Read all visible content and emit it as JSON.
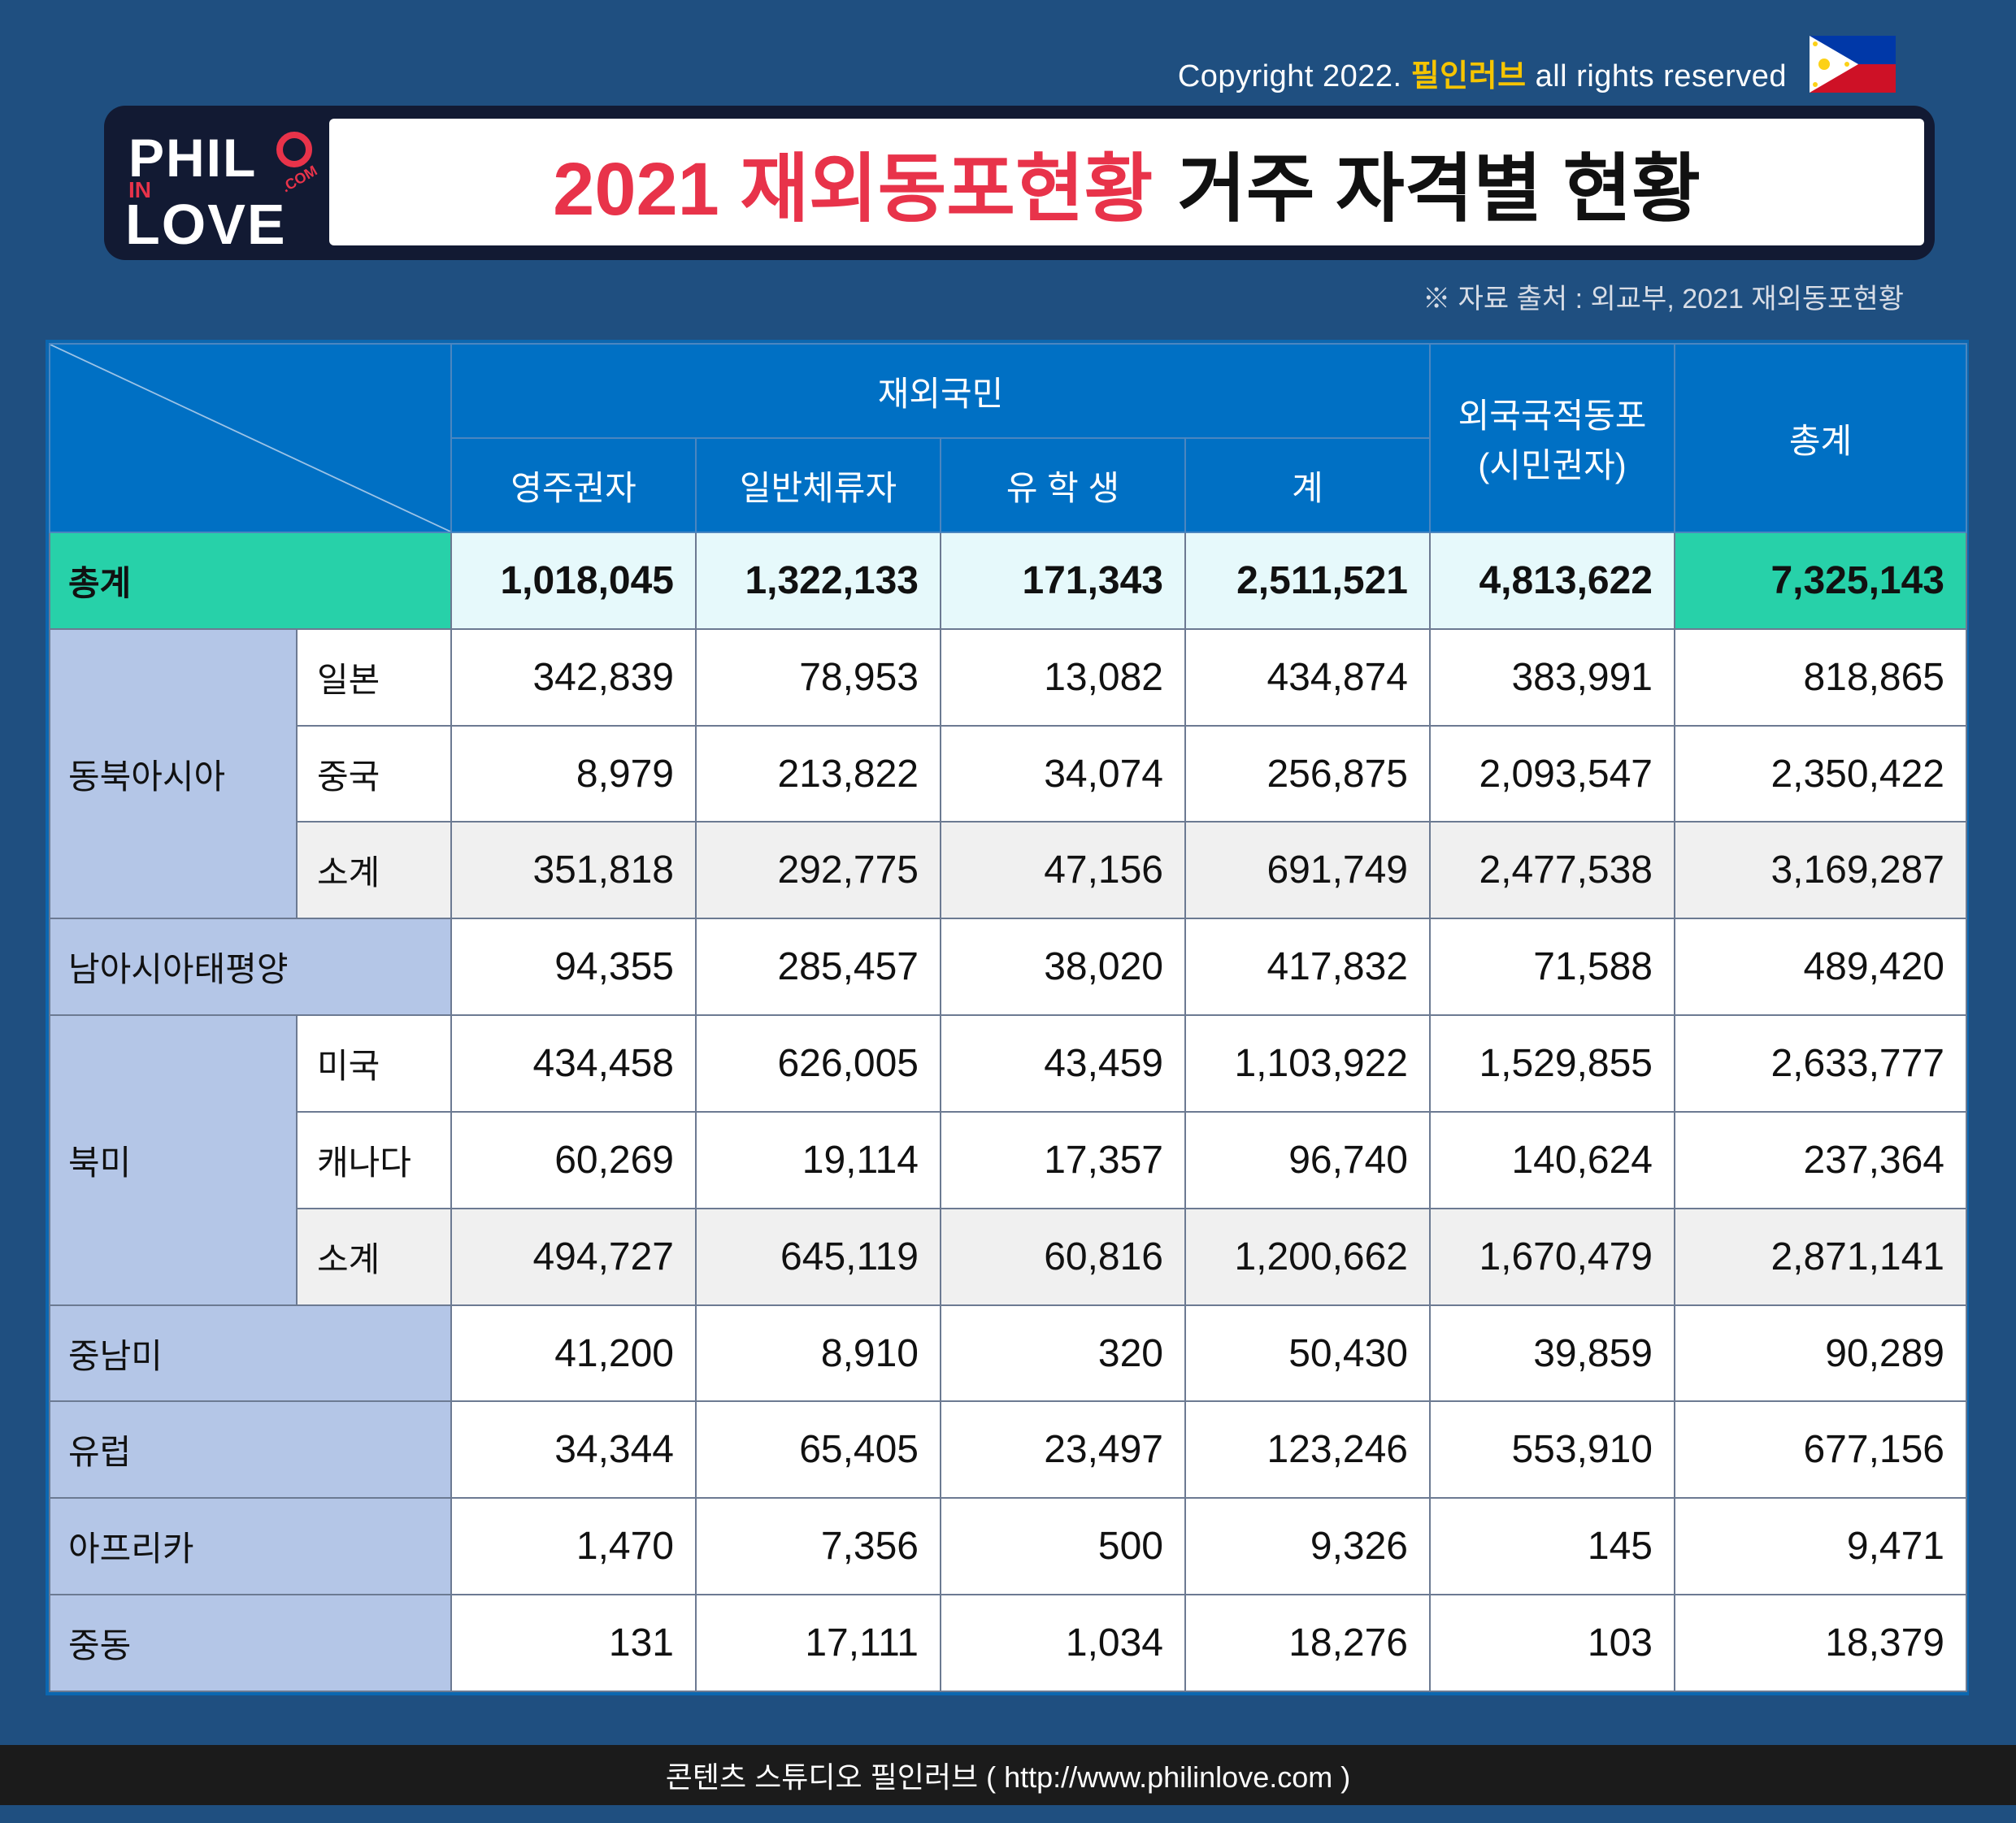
{
  "header": {
    "copyright_prefix": "Copyright 2022.",
    "copyright_brand": "필인러브",
    "copyright_suffix": "all rights reserved",
    "title_highlight": "2021 재외동포현황",
    "title_rest": "거주 자격별 현황",
    "source": "※ 자료 출처 :  외교부, 2021 재외동포현황",
    "logo_top": "PHIL",
    "logo_in": "IN",
    "logo_bottom": "LOVE",
    "logo_com": ".COM"
  },
  "colors": {
    "background": "#1f4f80",
    "header_blue": "#0070c4",
    "label_blue": "#b4c6e7",
    "total_green": "#27d1a9",
    "title_red": "#e8334a"
  },
  "chart_data": {
    "type": "table",
    "group_header": "재외국민",
    "columns": [
      "영주권자",
      "일반체류자",
      "유 학 생",
      "계",
      "외국국적동포\n(시민권자)",
      "총계"
    ],
    "column_labels": {
      "col_permanent": "영주권자",
      "col_general": "일반체류자",
      "col_student": "유 학 생",
      "col_subtotal": "계",
      "col_foreign_line1": "외국국적동포",
      "col_foreign_line2": "(시민권자)",
      "col_total": "총계"
    },
    "rows": [
      {
        "region": "총계",
        "sub": "",
        "values": [
          "1,018,045",
          "1,322,133",
          "171,343",
          "2,511,521",
          "4,813,622",
          "7,325,143"
        ]
      },
      {
        "region": "동북아시아",
        "sub": "일본",
        "values": [
          "342,839",
          "78,953",
          "13,082",
          "434,874",
          "383,991",
          "818,865"
        ]
      },
      {
        "region": "동북아시아",
        "sub": "중국",
        "values": [
          "8,979",
          "213,822",
          "34,074",
          "256,875",
          "2,093,547",
          "2,350,422"
        ]
      },
      {
        "region": "동북아시아",
        "sub": "소계",
        "values": [
          "351,818",
          "292,775",
          "47,156",
          "691,749",
          "2,477,538",
          "3,169,287"
        ]
      },
      {
        "region": "남아시아태평양",
        "sub": "",
        "values": [
          "94,355",
          "285,457",
          "38,020",
          "417,832",
          "71,588",
          "489,420"
        ]
      },
      {
        "region": "북미",
        "sub": "미국",
        "values": [
          "434,458",
          "626,005",
          "43,459",
          "1,103,922",
          "1,529,855",
          "2,633,777"
        ]
      },
      {
        "region": "북미",
        "sub": "캐나다",
        "values": [
          "60,269",
          "19,114",
          "17,357",
          "96,740",
          "140,624",
          "237,364"
        ]
      },
      {
        "region": "북미",
        "sub": "소계",
        "values": [
          "494,727",
          "645,119",
          "60,816",
          "1,200,662",
          "1,670,479",
          "2,871,141"
        ]
      },
      {
        "region": "중남미",
        "sub": "",
        "values": [
          "41,200",
          "8,910",
          "320",
          "50,430",
          "39,859",
          "90,289"
        ]
      },
      {
        "region": "유럽",
        "sub": "",
        "values": [
          "34,344",
          "65,405",
          "23,497",
          "123,246",
          "553,910",
          "677,156"
        ]
      },
      {
        "region": "아프리카",
        "sub": "",
        "values": [
          "1,470",
          "7,356",
          "500",
          "9,326",
          "145",
          "9,471"
        ]
      },
      {
        "region": "중동",
        "sub": "",
        "values": [
          "131",
          "17,111",
          "1,034",
          "18,276",
          "103",
          "18,379"
        ]
      }
    ]
  },
  "footer": {
    "text": "콘텐츠 스튜디오 필인러브 ( http://www.philinlove.com )"
  }
}
